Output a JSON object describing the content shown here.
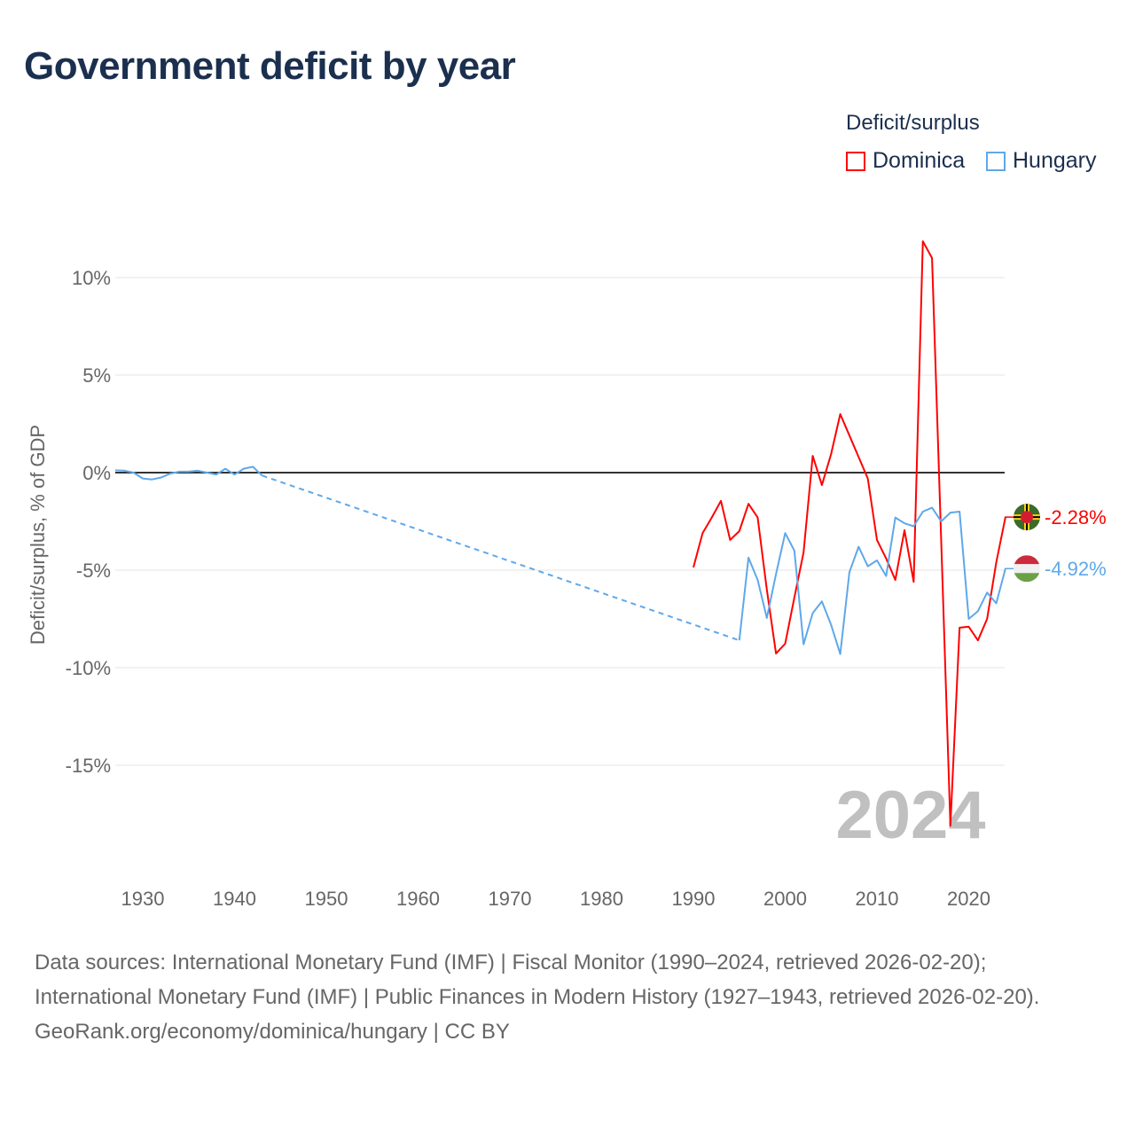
{
  "title": "Government deficit by year",
  "footer": {
    "sources": "Data sources: International Monetary Fund (IMF) | Fiscal Monitor (1990–2024, retrieved 2026-02-20); International Monetary Fund (IMF) | Public Finances in Modern History (1927–1943, retrieved 2026-02-20).",
    "credit": "GeoRank.org/economy/dominica/hungary | CC BY"
  },
  "chart_data": {
    "type": "line",
    "title": "Government deficit by year",
    "xlabel": "",
    "ylabel": "Deficit/surplus, % of GDP",
    "xlim": [
      1927,
      2024
    ],
    "ylim": [
      -18.5,
      12.5
    ],
    "x_ticks": [
      "1930",
      "1940",
      "1950",
      "1960",
      "1970",
      "1980",
      "1990",
      "2000",
      "2010",
      "2020"
    ],
    "y_ticks": [
      {
        "value": 10,
        "label": "10%"
      },
      {
        "value": 5,
        "label": "5%"
      },
      {
        "value": 0,
        "label": "0%"
      },
      {
        "value": -5,
        "label": "-5%"
      },
      {
        "value": -10,
        "label": "-10%"
      },
      {
        "value": -15,
        "label": "-15%"
      }
    ],
    "grid": true,
    "legend_title": "Deficit/surplus",
    "legend_position": "top-right",
    "current_year_label": "2024",
    "series": [
      {
        "name": "Dominica",
        "color": "#ff0000",
        "end_label": "-2.28%",
        "flag": "dominica-flag",
        "x": [
          1990,
          1991,
          1992,
          1993,
          1994,
          1995,
          1996,
          1997,
          1998,
          1999,
          2000,
          2001,
          2002,
          2003,
          2004,
          2005,
          2006,
          2007,
          2008,
          2009,
          2010,
          2011,
          2012,
          2013,
          2014,
          2015,
          2016,
          2017,
          2018,
          2019,
          2020,
          2021,
          2022,
          2023,
          2024
        ],
        "y": [
          -4.86,
          -3.1,
          -2.3,
          -1.45,
          -3.45,
          -3.0,
          -1.6,
          -2.3,
          -6.0,
          -9.27,
          -8.77,
          -6.4,
          -4.1,
          0.86,
          -0.64,
          0.95,
          3.0,
          1.9,
          0.8,
          -0.3,
          -3.45,
          -4.4,
          -5.5,
          -2.95,
          -5.6,
          11.86,
          11.0,
          -3.5,
          -18.1,
          -7.95,
          -7.9,
          -8.6,
          -7.5,
          -4.6,
          -2.28
        ]
      },
      {
        "name": "Hungary",
        "color": "#5ea8ea",
        "end_label": "-4.92%",
        "flag": "hungary-flag",
        "x": [
          1927,
          1928,
          1929,
          1930,
          1931,
          1932,
          1933,
          1934,
          1935,
          1936,
          1937,
          1938,
          1939,
          1940,
          1941,
          1942,
          1943,
          1995,
          1996,
          1997,
          1998,
          1999,
          2000,
          2001,
          2002,
          2003,
          2004,
          2005,
          2006,
          2007,
          2008,
          2009,
          2010,
          2011,
          2012,
          2013,
          2014,
          2015,
          2016,
          2017,
          2018,
          2019,
          2020,
          2021,
          2022,
          2023,
          2024
        ],
        "y": [
          0.12,
          0.1,
          0,
          -0.3,
          -0.35,
          -0.25,
          -0.05,
          0.05,
          0.05,
          0.1,
          0,
          -0.1,
          0.2,
          -0.1,
          0.2,
          0.3,
          -0.15,
          -8.6,
          -4.36,
          -5.5,
          -7.45,
          -5.2,
          -3.1,
          -4.0,
          -8.8,
          -7.2,
          -6.6,
          -7.8,
          -9.3,
          -5.1,
          -3.8,
          -4.8,
          -4.5,
          -5.3,
          -2.3,
          -2.6,
          -2.75,
          -2.0,
          -1.8,
          -2.5,
          -2.05,
          -2.0,
          -7.5,
          -7.1,
          -6.15,
          -6.7,
          -4.92
        ]
      }
    ]
  }
}
